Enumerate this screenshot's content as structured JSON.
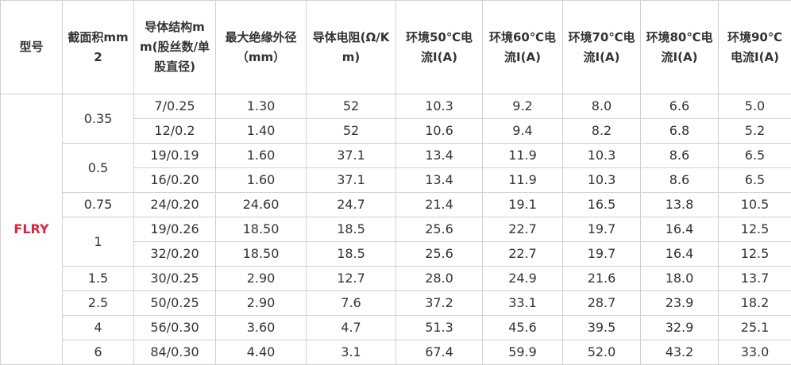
{
  "table": {
    "header": [
      "型号",
      "截面积mm2",
      "导体结构mm(股丝数/单股直径)",
      "最大绝缘外径（mm）",
      "导体电阻(Ω/Km)",
      "环境50℃电流I(A)",
      "环境60℃电流I(A)",
      "环境70℃电流I(A)",
      "环境80℃电流I(A)",
      "环境90℃电流I(A)"
    ],
    "model": "FLRY",
    "groups": [
      {
        "section": "0.35",
        "rows": [
          [
            "7/0.25",
            "1.30",
            "52",
            "10.3",
            "9.2",
            "8.0",
            "6.6",
            "5.0"
          ],
          [
            "12/0.2",
            "1.40",
            "52",
            "10.6",
            "9.4",
            "8.2",
            "6.8",
            "5.2"
          ]
        ]
      },
      {
        "section": "0.5",
        "rows": [
          [
            "19/0.19",
            "1.60",
            "37.1",
            "13.4",
            "11.9",
            "10.3",
            "8.6",
            "6.5"
          ],
          [
            "16/0.20",
            "1.60",
            "37.1",
            "13.4",
            "11.9",
            "10.3",
            "8.6",
            "6.5"
          ]
        ]
      },
      {
        "section": "0.75",
        "rows": [
          [
            "24/0.20",
            "24.60",
            "24.7",
            "21.4",
            "19.1",
            "16.5",
            "13.8",
            "10.5"
          ]
        ]
      },
      {
        "section": "1",
        "rows": [
          [
            "19/0.26",
            "18.50",
            "18.5",
            "25.6",
            "22.7",
            "19.7",
            "16.4",
            "12.5"
          ],
          [
            "32/0.20",
            "18.50",
            "18.5",
            "25.6",
            "22.7",
            "19.7",
            "16.4",
            "12.5"
          ]
        ]
      },
      {
        "section": "1.5",
        "rows": [
          [
            "30/0.25",
            "2.90",
            "12.7",
            "28.0",
            "24.9",
            "21.6",
            "18.0",
            "13.7"
          ]
        ]
      },
      {
        "section": "2.5",
        "rows": [
          [
            "50/0.25",
            "2.90",
            "7.6",
            "37.2",
            "33.1",
            "28.7",
            "23.9",
            "18.2"
          ]
        ]
      },
      {
        "section": "4",
        "rows": [
          [
            "56/0.30",
            "3.60",
            "4.7",
            "51.3",
            "45.6",
            "39.5",
            "32.9",
            "25.1"
          ]
        ]
      },
      {
        "section": "6",
        "rows": [
          [
            "84/0.30",
            "4.40",
            "3.1",
            "67.4",
            "59.9",
            "52.0",
            "43.2",
            "33.0"
          ]
        ]
      }
    ]
  }
}
